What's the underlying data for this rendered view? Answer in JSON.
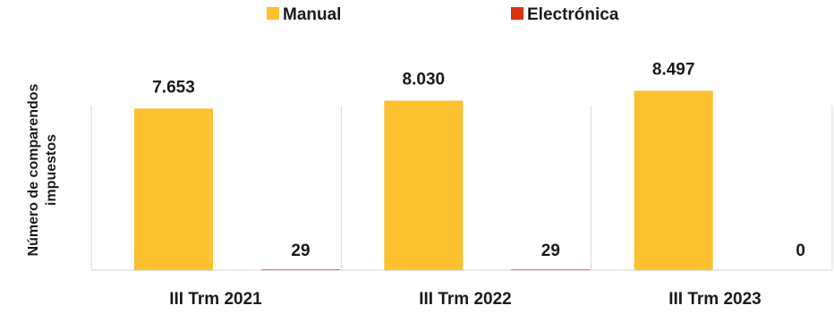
{
  "chart_data": {
    "type": "bar",
    "categories": [
      "III Trm 2021",
      "III Trm 2022",
      "III Trm 2023"
    ],
    "series": [
      {
        "name": "Manual",
        "color": "#FDC02F",
        "values": [
          7653,
          8030,
          8497
        ],
        "labels": [
          "7.653",
          "8.030",
          "8.497"
        ]
      },
      {
        "name": "Electrónica",
        "color": "#D9320E",
        "values": [
          29,
          29,
          0
        ],
        "labels": [
          "29",
          "29",
          "0"
        ]
      }
    ],
    "title": "",
    "xlabel": "",
    "ylabel": "Número de comparendos impuestos",
    "ylabel_lines": [
      "Número de comparendos",
      "impuestos"
    ],
    "ylim": [
      0,
      10000
    ],
    "grid": false,
    "legend": "top-center"
  }
}
